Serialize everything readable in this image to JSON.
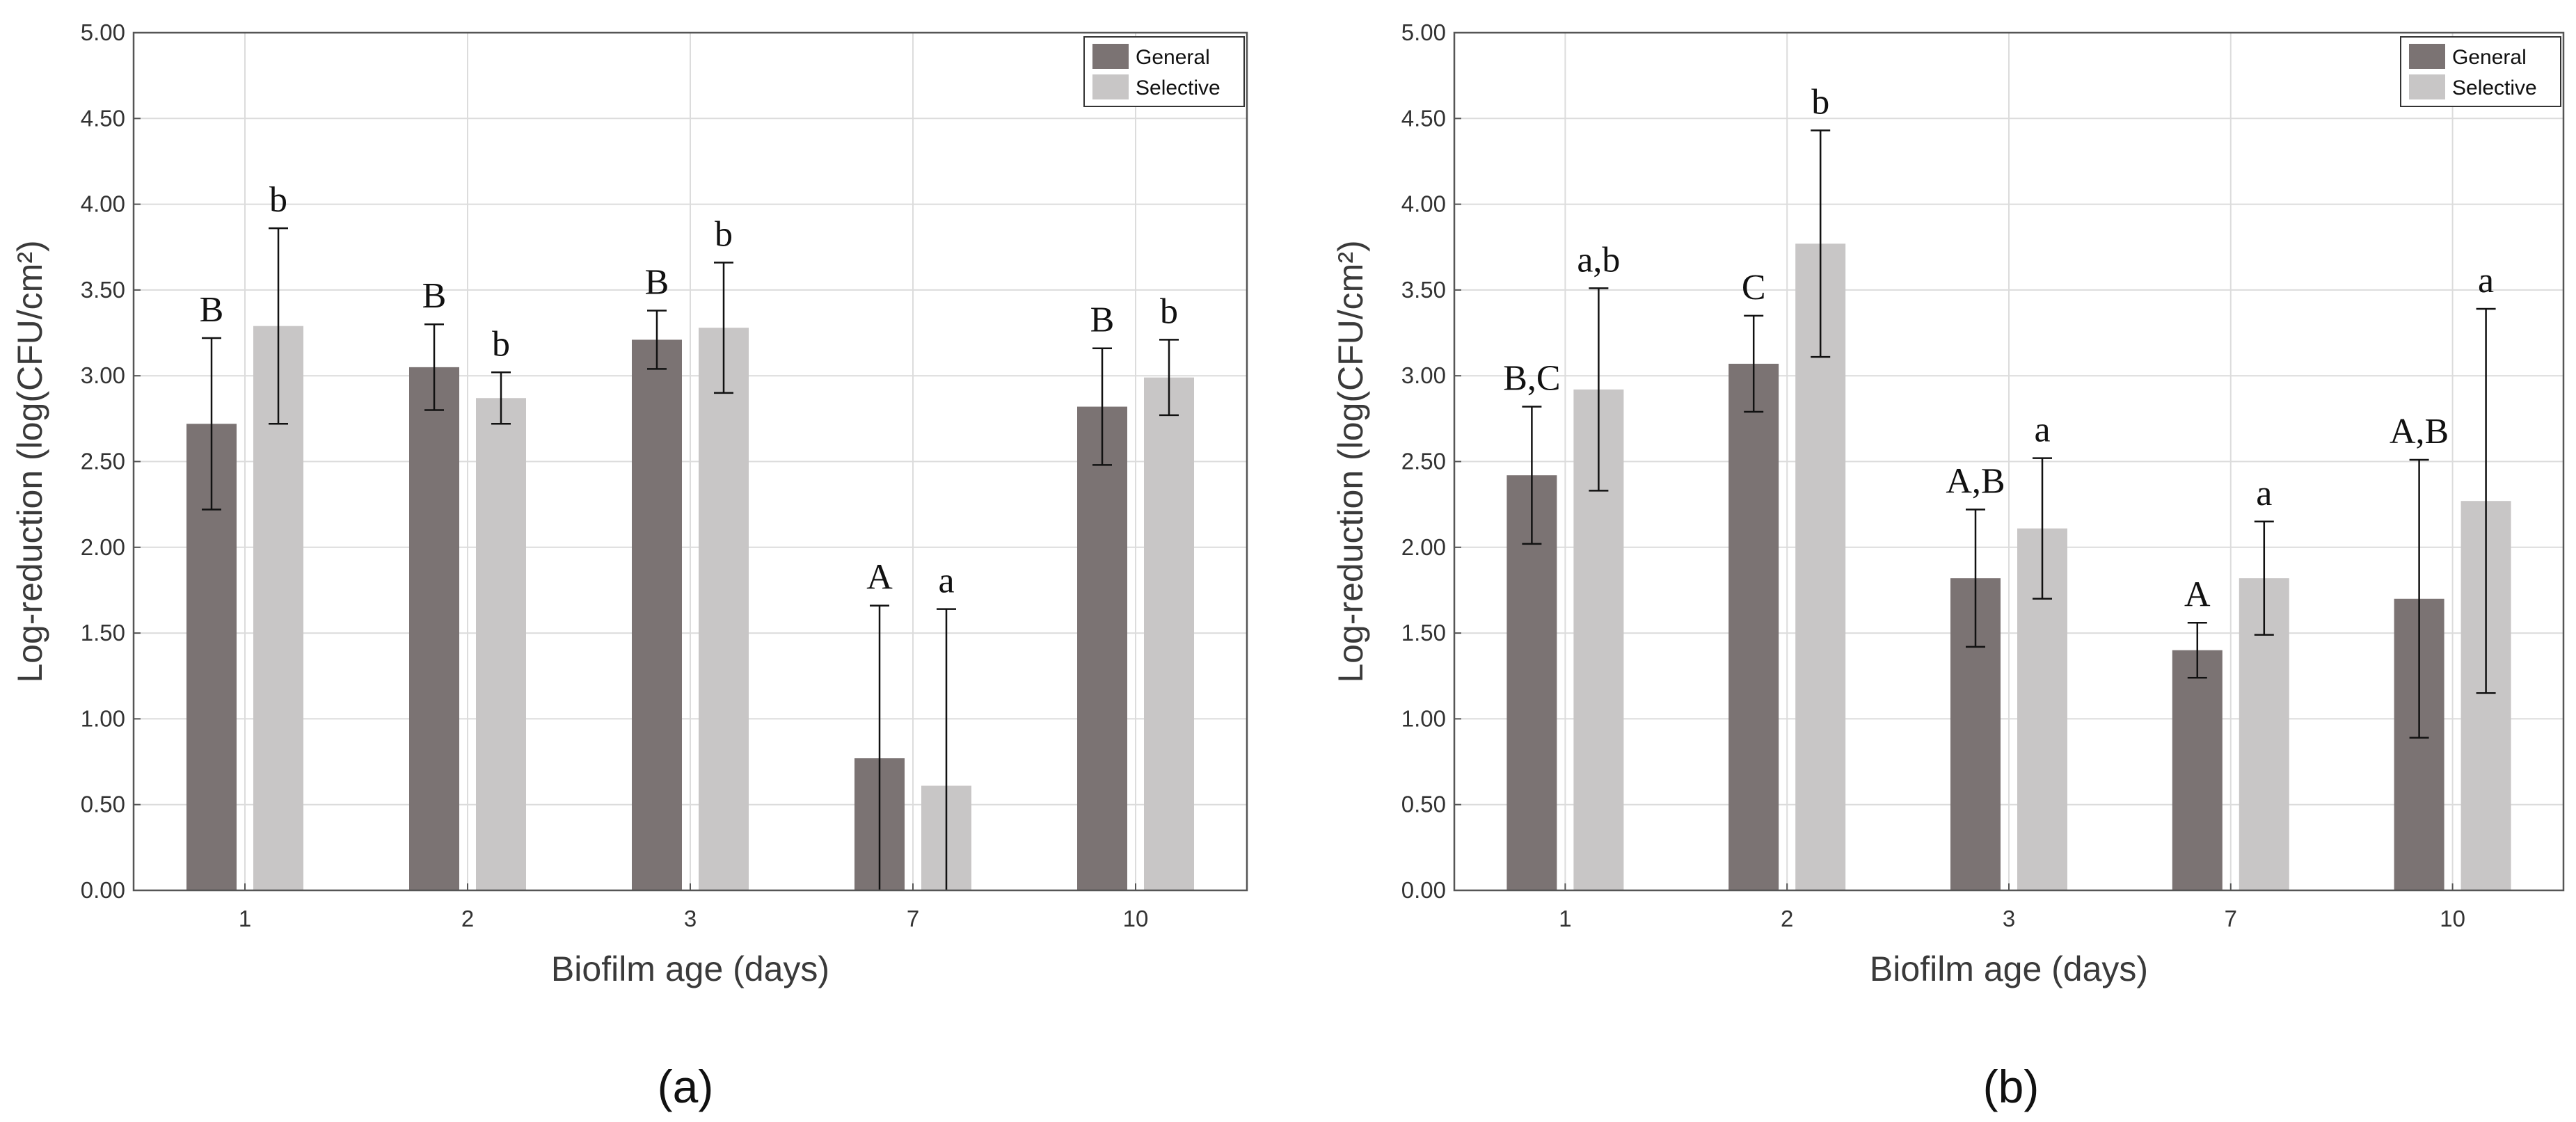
{
  "colors": {
    "general": "#7b7373",
    "selective": "#c8c6c6",
    "grid": "#dcdcdc",
    "frame": "#555555"
  },
  "chart_data": [
    {
      "type": "bar",
      "panel_label": "(a)",
      "xlabel": "Biofilm age (days)",
      "ylabel": "Log-reduction (log(CFU/cm²)",
      "ylim": [
        0,
        5
      ],
      "yticks": [
        "0.00",
        "0.50",
        "1.00",
        "1.50",
        "2.00",
        "2.50",
        "3.00",
        "3.50",
        "4.00",
        "4.50",
        "5.00"
      ],
      "categories": [
        "1",
        "2",
        "3",
        "7",
        "10"
      ],
      "legend_position": "top-right",
      "series": [
        {
          "name": "General",
          "values": [
            2.72,
            3.05,
            3.21,
            0.77,
            2.82
          ],
          "errors": [
            0.5,
            0.25,
            0.17,
            0.89,
            0.34
          ],
          "labels": [
            "B",
            "B",
            "B",
            "A",
            "B"
          ]
        },
        {
          "name": "Selective",
          "values": [
            3.29,
            2.87,
            3.28,
            0.61,
            2.99
          ],
          "errors": [
            0.57,
            0.15,
            0.38,
            1.03,
            0.22
          ],
          "labels": [
            "b",
            "b",
            "b",
            "a",
            "b"
          ]
        }
      ]
    },
    {
      "type": "bar",
      "panel_label": "(b)",
      "xlabel": "Biofilm age (days)",
      "ylabel": "Log-reduction (log(CFU/cm²)",
      "ylim": [
        0,
        5
      ],
      "yticks": [
        "0.00",
        "0.50",
        "1.00",
        "1.50",
        "2.00",
        "2.50",
        "3.00",
        "3.50",
        "4.00",
        "4.50",
        "5.00"
      ],
      "categories": [
        "1",
        "2",
        "3",
        "7",
        "10"
      ],
      "legend_position": "top-right",
      "series": [
        {
          "name": "General",
          "values": [
            2.42,
            3.07,
            1.82,
            1.4,
            1.7
          ],
          "errors": [
            0.4,
            0.28,
            0.4,
            0.16,
            0.81
          ],
          "labels": [
            "B,C",
            "C",
            "A,B",
            "A",
            "A,B"
          ]
        },
        {
          "name": "Selective",
          "values": [
            2.92,
            3.77,
            2.11,
            1.82,
            2.27
          ],
          "errors": [
            0.59,
            0.66,
            0.41,
            0.33,
            1.12
          ],
          "labels": [
            "a,b",
            "b",
            "a",
            "a",
            "a"
          ]
        }
      ]
    }
  ]
}
